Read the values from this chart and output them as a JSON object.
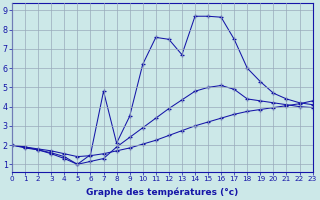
{
  "xlabel": "Graphe des températures (°c)",
  "xlim": [
    0,
    23
  ],
  "ylim": [
    0.6,
    9.4
  ],
  "xticks": [
    0,
    1,
    2,
    3,
    4,
    5,
    6,
    7,
    8,
    9,
    10,
    11,
    12,
    13,
    14,
    15,
    16,
    17,
    18,
    19,
    20,
    21,
    22,
    23
  ],
  "yticks": [
    1,
    2,
    3,
    4,
    5,
    6,
    7,
    8,
    9
  ],
  "line_color": "#1515a8",
  "bg_color": "#cce8e8",
  "grid_color": "#99aabb",
  "line1_x": [
    0,
    1,
    2,
    3,
    4,
    5,
    6,
    7,
    8,
    9,
    10,
    11,
    12,
    13,
    14,
    15,
    16,
    17,
    18,
    19,
    20,
    21,
    22,
    23
  ],
  "line1_y": [
    2.0,
    1.9,
    1.8,
    1.7,
    1.55,
    1.4,
    1.45,
    1.55,
    1.7,
    1.85,
    2.05,
    2.25,
    2.5,
    2.75,
    3.0,
    3.2,
    3.4,
    3.6,
    3.75,
    3.85,
    3.95,
    4.05,
    4.15,
    4.3
  ],
  "line2_x": [
    0,
    1,
    2,
    3,
    4,
    5,
    6,
    7,
    8,
    9,
    10,
    11,
    12,
    13,
    14,
    15,
    16,
    17,
    18,
    19,
    20,
    21,
    22,
    23
  ],
  "line2_y": [
    2.0,
    1.9,
    1.75,
    1.6,
    1.4,
    1.0,
    1.15,
    1.3,
    1.9,
    2.4,
    2.9,
    3.4,
    3.9,
    4.35,
    4.8,
    5.0,
    5.1,
    4.9,
    4.4,
    4.3,
    4.2,
    4.1,
    4.0,
    3.95
  ],
  "line3_x": [
    0,
    1,
    2,
    3,
    4,
    5,
    6,
    7,
    8,
    9,
    10,
    11,
    12,
    13,
    14,
    15,
    16,
    17,
    18,
    19,
    20,
    21,
    22,
    23
  ],
  "line3_y": [
    2.0,
    1.85,
    1.75,
    1.55,
    1.3,
    1.0,
    1.5,
    4.8,
    2.1,
    3.5,
    6.2,
    7.6,
    7.5,
    6.7,
    8.7,
    8.7,
    8.65,
    7.5,
    6.0,
    5.3,
    4.7,
    4.4,
    4.2,
    4.1
  ]
}
